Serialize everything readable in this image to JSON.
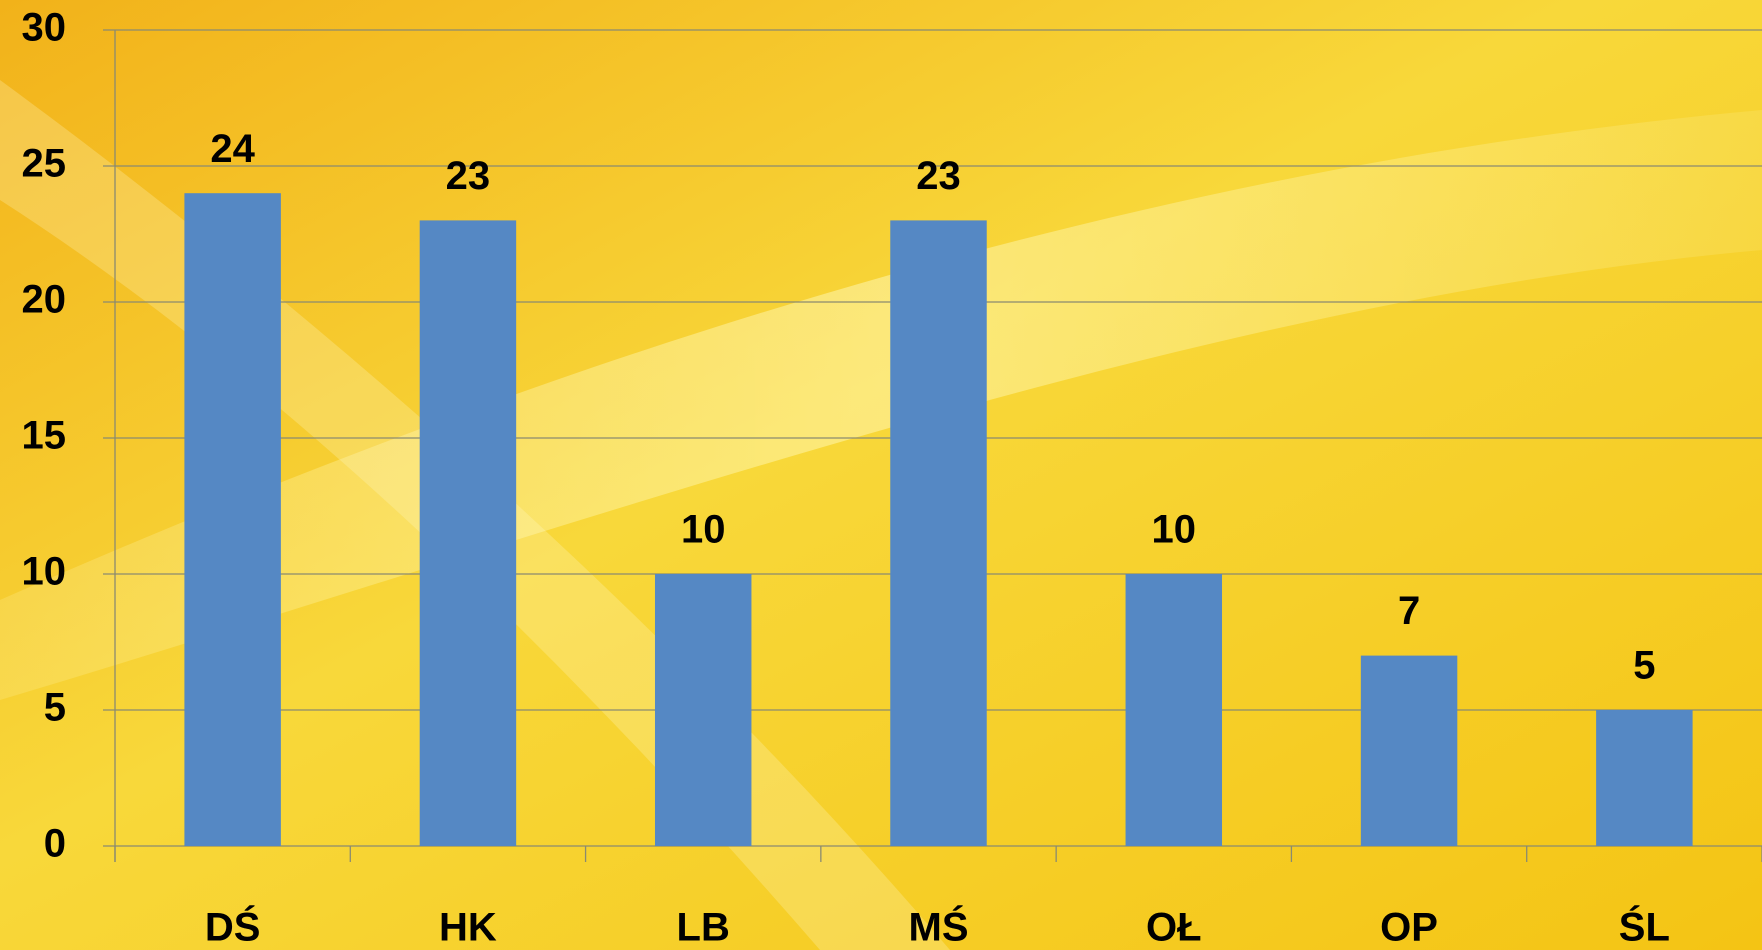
{
  "chart_data": {
    "type": "bar",
    "categories": [
      "DŚ",
      "HK",
      "LB",
      "MŚ",
      "OŁ",
      "OP",
      "ŚL"
    ],
    "values": [
      24,
      23,
      10,
      23,
      10,
      7,
      5
    ],
    "color": "#5588c4",
    "ylim": [
      0,
      30
    ],
    "yticks": [
      0,
      5,
      10,
      15,
      20,
      25,
      30
    ],
    "grid": true
  }
}
